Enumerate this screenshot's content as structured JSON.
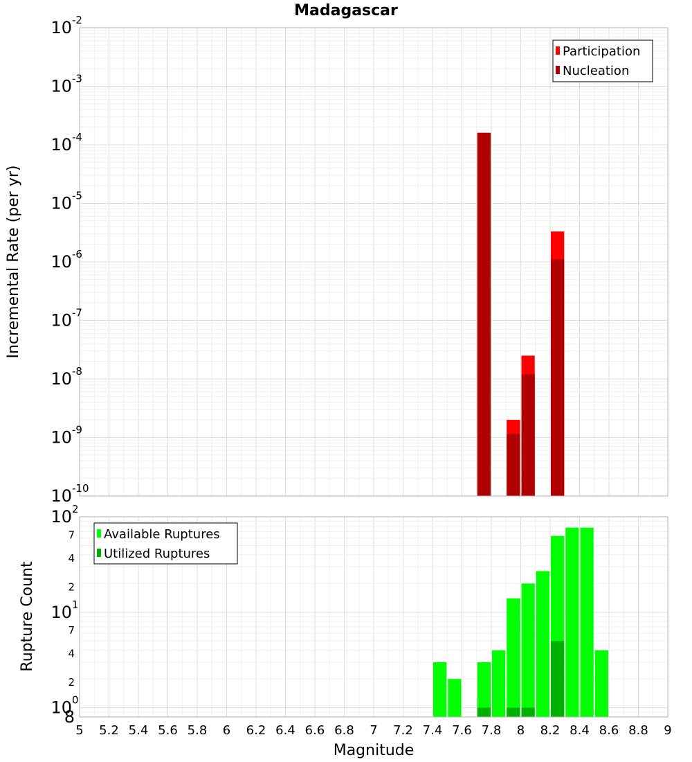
{
  "title": "Madagascar",
  "x_axis_label": "Magnitude",
  "chart_data": [
    {
      "type": "bar",
      "panel": "top",
      "ylabel": "Incremental Rate (per yr)",
      "yscale": "log",
      "ylim": [
        1e-10,
        0.01
      ],
      "xlim": [
        5,
        9
      ],
      "x_ticks": [
        "5",
        "5.2",
        "5.4",
        "5.6",
        "5.8",
        "6",
        "6.2",
        "6.4",
        "6.6",
        "6.8",
        "7",
        "7.2",
        "7.4",
        "7.6",
        "7.8",
        "8",
        "8.2",
        "8.4",
        "8.6",
        "8.8",
        "9"
      ],
      "y_ticks": [
        {
          "mantissa": "10",
          "exp": "-10",
          "value": 1e-10
        },
        {
          "mantissa": "10",
          "exp": "-9",
          "value": 1e-09
        },
        {
          "mantissa": "10",
          "exp": "-8",
          "value": 1e-08
        },
        {
          "mantissa": "10",
          "exp": "-7",
          "value": 1e-07
        },
        {
          "mantissa": "10",
          "exp": "-6",
          "value": 1e-06
        },
        {
          "mantissa": "10",
          "exp": "-5",
          "value": 1e-05
        },
        {
          "mantissa": "10",
          "exp": "-4",
          "value": 0.0001
        },
        {
          "mantissa": "10",
          "exp": "-3",
          "value": 0.001
        },
        {
          "mantissa": "10",
          "exp": "-2",
          "value": 0.01
        }
      ],
      "legend_position": "top-right",
      "series": [
        {
          "name": "Participation",
          "color": "#ff0000",
          "x": [
            7.75,
            7.95,
            8.05,
            8.25
          ],
          "values": [
            0.00016,
            2e-09,
            2.5e-08,
            3.3e-06
          ]
        },
        {
          "name": "Nucleation",
          "color": "#b00000",
          "x": [
            7.75,
            7.95,
            8.05,
            8.25
          ],
          "values": [
            0.00016,
            1.15e-09,
            1.2e-08,
            1.1e-06
          ]
        }
      ]
    },
    {
      "type": "bar",
      "panel": "bottom",
      "ylabel": "Rupture Count",
      "yscale": "log",
      "ylim": [
        0.8,
        100
      ],
      "xlim": [
        5,
        9
      ],
      "y_major_ticks": [
        {
          "mantissa": "10",
          "exp": "0",
          "value": 1
        },
        {
          "mantissa": "10",
          "exp": "1",
          "value": 10
        },
        {
          "mantissa": "10",
          "exp": "2",
          "value": 100
        }
      ],
      "y_minor_ticks": [
        {
          "label": "8",
          "value": 0.8
        },
        {
          "label": "2",
          "value": 2
        },
        {
          "label": "4",
          "value": 4
        },
        {
          "label": "7",
          "value": 7
        },
        {
          "label": "2",
          "value": 20
        },
        {
          "label": "4",
          "value": 40
        },
        {
          "label": "7",
          "value": 70
        }
      ],
      "legend_position": "top-left",
      "series": [
        {
          "name": "Available Ruptures",
          "color": "#00ff00",
          "x": [
            7.45,
            7.55,
            7.75,
            7.85,
            7.95,
            8.05,
            8.15,
            8.25,
            8.35,
            8.45,
            8.55
          ],
          "values": [
            3,
            2,
            3,
            4,
            14,
            20,
            27,
            63,
            77,
            77,
            4
          ]
        },
        {
          "name": "Utilized Ruptures",
          "color": "#00b000",
          "x": [
            7.75,
            7.95,
            8.05,
            8.25
          ],
          "values": [
            1,
            1,
            1,
            5
          ]
        }
      ]
    }
  ]
}
